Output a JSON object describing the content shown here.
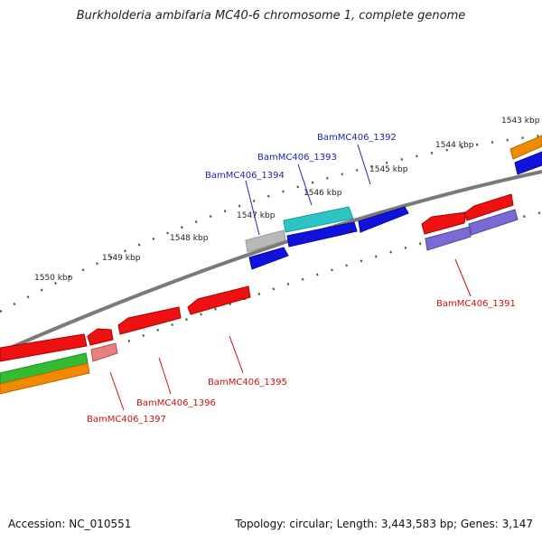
{
  "title": "Burkholderia ambifaria MC40-6 chromosome 1, complete genome",
  "footer": {
    "accession": "Accession: NC_010551",
    "summary": "Topology: circular; Length: 3,443,583 bp; Genes: 3,147"
  },
  "colors": {
    "backbone": "#7a7a7a",
    "tick": "#1f7a1f",
    "label_forward": "#2222aa",
    "label_reverse": "#cc1111"
  },
  "kbp_labels": [
    "1543 kbp",
    "1544 kbp",
    "1545 kbp",
    "1546 kbp",
    "1547 kbp",
    "1548 kbp",
    "1549 kbp",
    "1550 kbp"
  ],
  "genes": [
    {
      "name": "BamMC406_1392",
      "strand": "forward"
    },
    {
      "name": "BamMC406_1393",
      "strand": "forward"
    },
    {
      "name": "BamMC406_1394",
      "strand": "forward"
    },
    {
      "name": "BamMC406_1391",
      "strand": "reverse"
    },
    {
      "name": "BamMC406_1395",
      "strand": "reverse"
    },
    {
      "name": "BamMC406_1396",
      "strand": "reverse"
    },
    {
      "name": "BamMC406_1397",
      "strand": "reverse"
    }
  ]
}
